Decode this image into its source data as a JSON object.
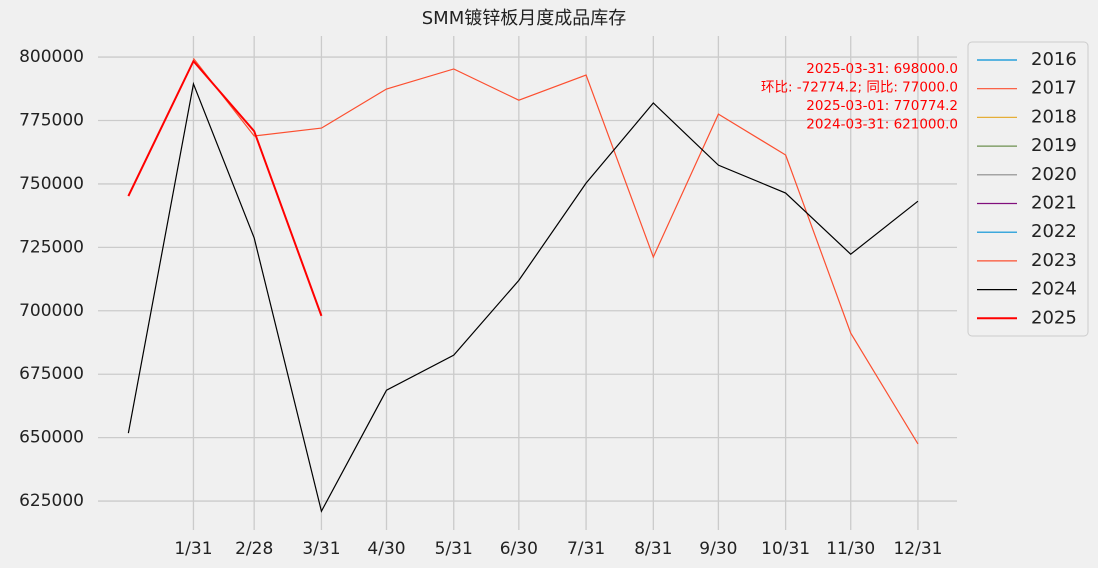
{
  "chart_data": {
    "type": "line",
    "title": "SMM镀锌板月度成品库存",
    "x": [
      1,
      31,
      59,
      90,
      120,
      151,
      181,
      212,
      243,
      273,
      304,
      334,
      365
    ],
    "xlim": [
      -13,
      383
    ],
    "xticks": [
      {
        "value": 31,
        "label": "1/31"
      },
      {
        "value": 59,
        "label": "2/28"
      },
      {
        "value": 90,
        "label": "3/31"
      },
      {
        "value": 120,
        "label": "4/30"
      },
      {
        "value": 151,
        "label": "5/31"
      },
      {
        "value": 181,
        "label": "6/30"
      },
      {
        "value": 212,
        "label": "7/31"
      },
      {
        "value": 243,
        "label": "8/31"
      },
      {
        "value": 273,
        "label": "9/30"
      },
      {
        "value": 304,
        "label": "10/31"
      },
      {
        "value": 334,
        "label": "11/30"
      },
      {
        "value": 365,
        "label": "12/31"
      }
    ],
    "ylim": [
      613600,
      808300
    ],
    "yticks": [
      625000,
      650000,
      675000,
      700000,
      725000,
      750000,
      775000,
      800000
    ],
    "grid": true,
    "series": [
      {
        "name": "2016",
        "color": "#008fd5",
        "values": [
          null,
          null,
          null,
          null,
          null,
          null,
          null,
          null,
          null,
          null,
          null,
          null,
          null
        ]
      },
      {
        "name": "2017",
        "color": "#fc4f30",
        "values": [
          null,
          null,
          null,
          null,
          null,
          null,
          null,
          null,
          null,
          null,
          null,
          null,
          null
        ]
      },
      {
        "name": "2018",
        "color": "#e5ae38",
        "values": [
          null,
          null,
          null,
          null,
          null,
          null,
          null,
          null,
          null,
          null,
          null,
          null,
          null
        ]
      },
      {
        "name": "2019",
        "color": "#6d904f",
        "values": [
          null,
          null,
          null,
          null,
          null,
          null,
          null,
          null,
          null,
          null,
          null,
          null,
          null
        ]
      },
      {
        "name": "2020",
        "color": "#8b8b8b",
        "values": [
          null,
          null,
          null,
          null,
          null,
          null,
          null,
          null,
          null,
          null,
          null,
          null,
          null
        ]
      },
      {
        "name": "2021",
        "color": "#810f7c",
        "values": [
          null,
          null,
          null,
          null,
          null,
          null,
          null,
          null,
          null,
          null,
          null,
          null,
          null
        ]
      },
      {
        "name": "2022",
        "color": "#008fd5",
        "values": [
          null,
          null,
          null,
          null,
          null,
          null,
          null,
          null,
          null,
          null,
          null,
          null,
          null
        ]
      },
      {
        "name": "2023",
        "color": "#fc4f30",
        "values": [
          null,
          799500,
          768900,
          772000,
          787400,
          795300,
          783000,
          792900,
          721200,
          777500,
          761400,
          691200,
          647500
        ]
      },
      {
        "name": "2024",
        "color": "#000000",
        "values": [
          651800,
          789400,
          728700,
          621000,
          668700,
          682500,
          712000,
          750300,
          781900,
          757400,
          746400,
          722300,
          743200
        ]
      },
      {
        "name": "2025",
        "color": "#ff0000",
        "width": 2,
        "values": [
          745200,
          798400,
          770774.2,
          698000,
          null,
          null,
          null,
          null,
          null,
          null,
          null,
          null,
          null
        ]
      }
    ],
    "annotations": [
      "2025-03-31: 698000.0",
      "环比: -72774.2; 同比: 77000.0",
      "2025-03-01: 770774.2",
      "2024-03-31: 621000.0"
    ],
    "annotation_color": "#ff0000"
  }
}
